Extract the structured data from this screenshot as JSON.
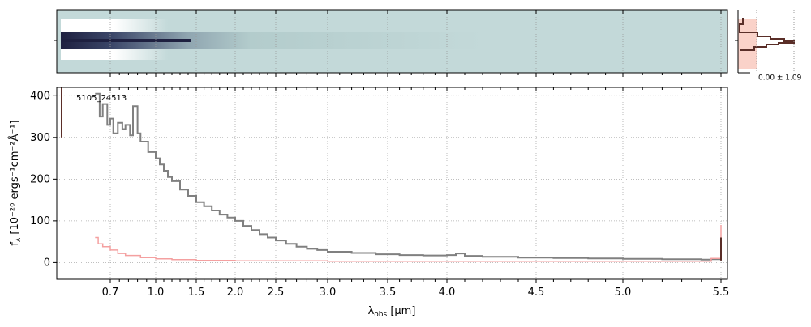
{
  "chart_data": {
    "type": "line",
    "title": "",
    "object_id": "5105_24513",
    "xlabel_main": "λ",
    "xlabel_sub": "obs",
    "xlabel_unit": " [μm]",
    "ylabel_main": "f",
    "ylabel_sub": "λ",
    "ylabel_unit": " [10⁻²⁰ ergs⁻¹cm⁻²Å⁻¹]",
    "ylim": [
      -40,
      420
    ],
    "yticks": [
      0,
      100,
      200,
      300,
      400
    ],
    "x_ticks": [
      "0.7",
      "1.0",
      "1.5",
      "2.0",
      "2.5",
      "3.0",
      "3.5",
      "4.0",
      "4.5",
      "5.0",
      "5.5"
    ],
    "x_tick_values": [
      0.7,
      1.0,
      1.5,
      2.0,
      2.5,
      3.0,
      3.5,
      4.0,
      4.5,
      5.0,
      5.5
    ],
    "grid": true,
    "side_panel_label": "0.00 ± 1.09",
    "colors": {
      "flux": "#808080",
      "error": "#f4a0a0",
      "profile": "#5a2e28",
      "profile_fill": "#f9c7bb",
      "spectrum2d_bg": "#c3d9d9",
      "spectrum2d_trace": "#1e2040"
    },
    "series": [
      {
        "name": "",
        "x": [
          0.6,
          0.63,
          0.65,
          0.68,
          0.7,
          0.72,
          0.75,
          0.78,
          0.8,
          0.83,
          0.85,
          0.88,
          0.9,
          0.95,
          1.0,
          1.05,
          1.1,
          1.15,
          1.2,
          1.3,
          1.4,
          1.5,
          1.6,
          1.7,
          1.8,
          1.9,
          2.0,
          2.1,
          2.2,
          2.3,
          2.4,
          2.5,
          2.6,
          2.7,
          2.8,
          2.9,
          3.0,
          3.2,
          3.4,
          3.6,
          3.8,
          4.0,
          4.05,
          4.1,
          4.2,
          4.4,
          4.6,
          4.8,
          5.0,
          5.2,
          5.4,
          5.45,
          5.5
        ],
        "y": [
          405,
          350,
          380,
          330,
          345,
          310,
          335,
          320,
          330,
          305,
          375,
          310,
          290,
          265,
          250,
          235,
          220,
          205,
          195,
          175,
          160,
          145,
          135,
          125,
          115,
          108,
          100,
          88,
          78,
          68,
          60,
          53,
          45,
          38,
          33,
          30,
          26,
          23,
          20,
          18,
          17,
          18,
          22,
          16,
          14,
          12,
          11,
          10,
          9,
          8,
          7,
          8,
          60
        ]
      },
      {
        "name": "",
        "x": [
          0.6,
          0.62,
          0.65,
          0.7,
          0.75,
          0.8,
          0.9,
          1.0,
          1.2,
          1.5,
          2.0,
          3.0,
          4.0,
          5.0,
          5.4,
          5.45,
          5.5
        ],
        "y": [
          60,
          45,
          38,
          30,
          22,
          17,
          12,
          9,
          7,
          5,
          4,
          3,
          3,
          3,
          3,
          10,
          90
        ]
      }
    ]
  }
}
